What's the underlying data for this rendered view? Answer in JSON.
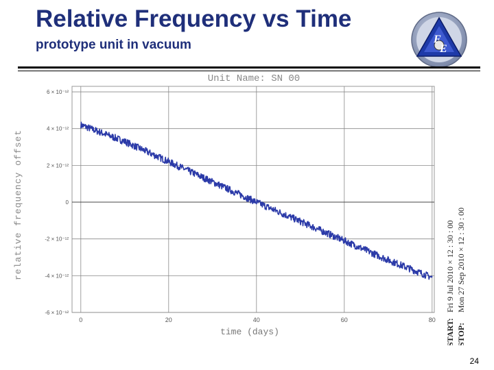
{
  "slide": {
    "title": "Relative Frequency vs Time",
    "subtitle": "prototype unit in vacuum",
    "page_number": "24"
  },
  "logo": {
    "icon": "fe-triangle-logo",
    "letters": "FE"
  },
  "colors": {
    "title": "#1f2f7a",
    "series": "#2b3aa8",
    "grid": "#888888"
  },
  "chart_data": {
    "type": "line",
    "title": "Unit Name: SN 00",
    "xlabel": "time (days)",
    "ylabel": "relative frequency offset",
    "xlim": [
      -2,
      80.5
    ],
    "ylim": [
      -6e-12,
      6.3e-12
    ],
    "x_ticks": [
      {
        "value": 0,
        "label": "0"
      },
      {
        "value": 20,
        "label": "20"
      },
      {
        "value": 40,
        "label": "40"
      },
      {
        "value": 60,
        "label": "60"
      },
      {
        "value": 80,
        "label": "80"
      }
    ],
    "y_ticks": [
      {
        "value": 6e-12,
        "label": "6 × 10⁻¹²"
      },
      {
        "value": 4e-12,
        "label": "4 × 10⁻¹²"
      },
      {
        "value": 2e-12,
        "label": "2 × 10⁻¹²"
      },
      {
        "value": 0,
        "label": "0"
      },
      {
        "value": -2e-12,
        "label": "-2 × 10⁻¹²"
      },
      {
        "value": -4e-12,
        "label": "-4 × 10⁻¹²"
      },
      {
        "value": -6e-12,
        "label": "-6 × 10⁻¹²"
      }
    ],
    "grid": true,
    "series": [
      {
        "x": [
          0,
          10,
          20,
          30,
          40,
          50,
          60,
          70,
          80
        ],
        "y": [
          4.2e-12,
          3.3e-12,
          2.2e-12,
          1.1e-12,
          0.0,
          -1.05e-12,
          -2.1e-12,
          -3.15e-12,
          -4.1e-12
        ]
      }
    ],
    "annotation": {
      "start_label": "START:",
      "start_value": "Fri 9 Jul 2010 × 12 : 30 : 00",
      "stop_label": "STOP:",
      "stop_value": "Mon 27 Sep 2010 × 12 : 30 : 00"
    }
  }
}
